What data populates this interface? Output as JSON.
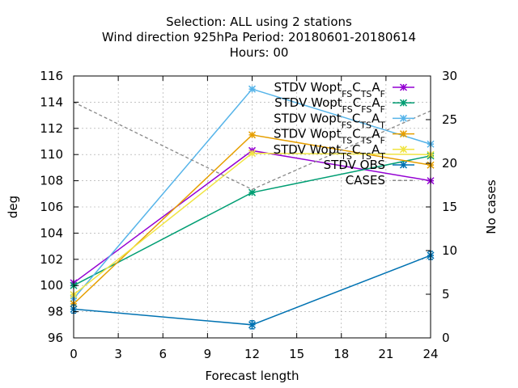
{
  "chart_data": {
    "type": "line",
    "title_lines": [
      "Selection: ALL using     2 stations",
      "Wind direction 925hPa   Period: 20180601-20180614",
      "Hours:  00"
    ],
    "xlabel": "Forecast length",
    "ylabel": "deg",
    "y2label": "No cases",
    "x_ticks": [
      0,
      3,
      6,
      9,
      12,
      15,
      18,
      21,
      24
    ],
    "y_ticks": [
      96,
      98,
      100,
      102,
      104,
      106,
      108,
      110,
      112,
      114,
      116
    ],
    "y2_ticks": [
      0,
      5,
      10,
      15,
      20,
      25,
      30
    ],
    "xlim": [
      0,
      24
    ],
    "ylim": [
      96,
      116
    ],
    "y2lim": [
      0,
      30
    ],
    "grid": true,
    "legend_position": "top-right",
    "x": [
      0,
      12,
      24
    ],
    "series": [
      {
        "name": "STDV Wopt_{FS}C_{TS}A_F",
        "label_base": "STDV Wopt",
        "label_parts": [
          [
            "FS",
            "sub"
          ],
          [
            "C",
            ""
          ],
          [
            "TS",
            "sub"
          ],
          [
            "A",
            ""
          ],
          [
            "F",
            "sub"
          ]
        ],
        "color": "#9400d3",
        "marker": "x-star",
        "values": [
          100.2,
          110.3,
          108.0
        ]
      },
      {
        "name": "STDV Wopt_{FS}C_{FS}A_F",
        "label_base": "STDV Wopt",
        "label_parts": [
          [
            "FS",
            "sub"
          ],
          [
            "C",
            ""
          ],
          [
            "FS",
            "sub"
          ],
          [
            "A",
            ""
          ],
          [
            "F",
            "sub"
          ]
        ],
        "color": "#009e73",
        "marker": "x-star",
        "values": [
          100.0,
          107.1,
          109.9
        ]
      },
      {
        "name": "STDV Wopt_{FS}C_{TS}A_T",
        "label_base": "STDV Wopt",
        "label_parts": [
          [
            "FS",
            "sub"
          ],
          [
            "C",
            ""
          ],
          [
            "TS",
            "sub"
          ],
          [
            "A",
            ""
          ],
          [
            "T",
            "sub"
          ]
        ],
        "color": "#56b4e9",
        "marker": "x-star",
        "values": [
          99.0,
          115.0,
          110.8
        ]
      },
      {
        "name": "STDV Wopt_{TS}C_{TS}A_F",
        "label_base": "STDV Wopt",
        "label_parts": [
          [
            "TS",
            "sub"
          ],
          [
            "C",
            ""
          ],
          [
            "TS",
            "sub"
          ],
          [
            "A",
            ""
          ],
          [
            "F",
            "sub"
          ]
        ],
        "color": "#e69f00",
        "marker": "x-star",
        "values": [
          98.6,
          111.5,
          109.2
        ]
      },
      {
        "name": "STDV Wopt_{TS}C_{TS}A_T",
        "label_base": "STDV Wopt",
        "label_parts": [
          [
            "TS",
            "sub"
          ],
          [
            "C",
            ""
          ],
          [
            "TS",
            "sub"
          ],
          [
            "A",
            ""
          ],
          [
            "T",
            "sub"
          ]
        ],
        "color": "#f0e442",
        "marker": "x-star",
        "values": [
          99.3,
          110.1,
          110.0
        ]
      },
      {
        "name": "STDV OBS",
        "label_base": "STDV OBS",
        "label_parts": [],
        "color": "#0072b2",
        "marker": "x-star",
        "error_bars": true,
        "values": [
          98.2,
          97.0,
          102.3
        ]
      },
      {
        "name": "CASES",
        "label_base": "CASES",
        "label_parts": [],
        "color": "#888888",
        "dashed": true,
        "axis": "y2",
        "values": [
          27,
          17,
          26
        ]
      }
    ]
  }
}
